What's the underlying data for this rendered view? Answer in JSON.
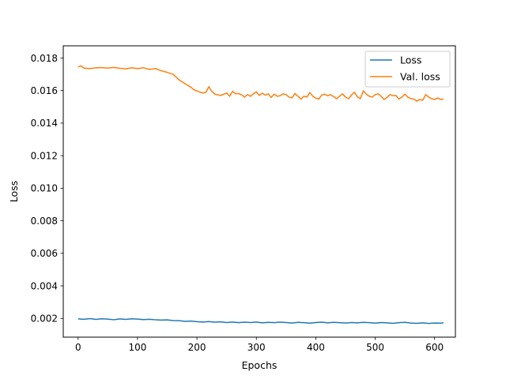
{
  "chart_data": {
    "type": "line",
    "xlabel": "Epochs",
    "ylabel": "Loss",
    "xlim": [
      -25,
      635
    ],
    "ylim": [
      0.00085,
      0.01875
    ],
    "xticks": [
      0,
      100,
      200,
      300,
      400,
      500,
      600
    ],
    "xtick_labels": [
      "0",
      "100",
      "200",
      "300",
      "400",
      "500",
      "600"
    ],
    "yticks": [
      0.002,
      0.004,
      0.006,
      0.008,
      0.01,
      0.012,
      0.014,
      0.016,
      0.018
    ],
    "ytick_labels": [
      "0.002",
      "0.004",
      "0.006",
      "0.008",
      "0.010",
      "0.012",
      "0.014",
      "0.016",
      "0.018"
    ],
    "grid": false,
    "legend_position": "top-right",
    "series": [
      {
        "name": "Loss",
        "color": "#1f77b4",
        "x": [
          0,
          10,
          20,
          30,
          40,
          50,
          60,
          70,
          80,
          90,
          100,
          110,
          120,
          130,
          140,
          150,
          160,
          170,
          180,
          190,
          200,
          210,
          220,
          230,
          240,
          250,
          260,
          270,
          280,
          290,
          300,
          310,
          320,
          330,
          340,
          350,
          360,
          370,
          380,
          390,
          400,
          410,
          420,
          430,
          440,
          450,
          460,
          470,
          480,
          490,
          500,
          510,
          520,
          530,
          540,
          550,
          560,
          570,
          580,
          590,
          600,
          610,
          615
        ],
        "y": [
          0.00197,
          0.00195,
          0.00199,
          0.00194,
          0.00198,
          0.00196,
          0.00192,
          0.00197,
          0.00194,
          0.00198,
          0.00196,
          0.00193,
          0.00195,
          0.00192,
          0.0019,
          0.00191,
          0.00187,
          0.00186,
          0.00182,
          0.00184,
          0.0018,
          0.00178,
          0.00181,
          0.00177,
          0.00179,
          0.00175,
          0.00178,
          0.00174,
          0.00177,
          0.00175,
          0.00178,
          0.00173,
          0.00176,
          0.00174,
          0.00177,
          0.00175,
          0.00172,
          0.00176,
          0.00174,
          0.00171,
          0.00175,
          0.00177,
          0.00173,
          0.00176,
          0.00174,
          0.00172,
          0.00175,
          0.00173,
          0.00176,
          0.00174,
          0.00171,
          0.00175,
          0.00173,
          0.0017,
          0.00174,
          0.00176,
          0.00172,
          0.0017,
          0.00173,
          0.00169,
          0.00172,
          0.00171,
          0.00173
        ]
      },
      {
        "name": "Val. loss",
        "color": "#ff7f0e",
        "x": [
          0,
          5,
          10,
          20,
          30,
          40,
          50,
          60,
          70,
          80,
          90,
          100,
          110,
          120,
          130,
          140,
          150,
          155,
          160,
          170,
          180,
          190,
          195,
          200,
          205,
          210,
          215,
          220,
          225,
          230,
          240,
          250,
          255,
          260,
          265,
          270,
          275,
          280,
          285,
          290,
          295,
          300,
          305,
          310,
          315,
          320,
          325,
          330,
          335,
          340,
          345,
          350,
          355,
          360,
          365,
          370,
          375,
          380,
          385,
          390,
          395,
          400,
          405,
          410,
          415,
          420,
          425,
          430,
          435,
          440,
          445,
          450,
          455,
          460,
          465,
          470,
          475,
          480,
          485,
          490,
          495,
          500,
          505,
          510,
          515,
          520,
          525,
          530,
          535,
          540,
          545,
          550,
          555,
          560,
          565,
          570,
          575,
          580,
          585,
          590,
          595,
          600,
          605,
          610,
          615
        ],
        "y": [
          0.01745,
          0.01752,
          0.01738,
          0.01735,
          0.0174,
          0.01741,
          0.01738,
          0.01742,
          0.01737,
          0.01733,
          0.0174,
          0.01735,
          0.0174,
          0.0173,
          0.01735,
          0.01722,
          0.01712,
          0.01705,
          0.017,
          0.01665,
          0.01642,
          0.0162,
          0.01605,
          0.01598,
          0.0159,
          0.01585,
          0.01588,
          0.01624,
          0.01595,
          0.01578,
          0.0157,
          0.01585,
          0.01565,
          0.01595,
          0.0158,
          0.01582,
          0.01574,
          0.0156,
          0.01575,
          0.01565,
          0.0158,
          0.01592,
          0.0157,
          0.01584,
          0.01572,
          0.0158,
          0.01558,
          0.01578,
          0.01565,
          0.01568,
          0.0158,
          0.01575,
          0.0156,
          0.01555,
          0.01582,
          0.01565,
          0.01548,
          0.01565,
          0.0156,
          0.01588,
          0.01565,
          0.01553,
          0.01548,
          0.01572,
          0.01578,
          0.01568,
          0.01575,
          0.01563,
          0.0155,
          0.01565,
          0.0158,
          0.0156,
          0.0155,
          0.01572,
          0.0159,
          0.01562,
          0.0155,
          0.01598,
          0.01578,
          0.01565,
          0.0156,
          0.01575,
          0.0158,
          0.01565,
          0.01545,
          0.01558,
          0.01575,
          0.01568,
          0.0157,
          0.01548,
          0.0156,
          0.01578,
          0.0156,
          0.0155,
          0.01548,
          0.01535,
          0.01545,
          0.0154,
          0.01575,
          0.0156,
          0.0155,
          0.01545,
          0.01555,
          0.01545,
          0.01548
        ]
      }
    ]
  }
}
